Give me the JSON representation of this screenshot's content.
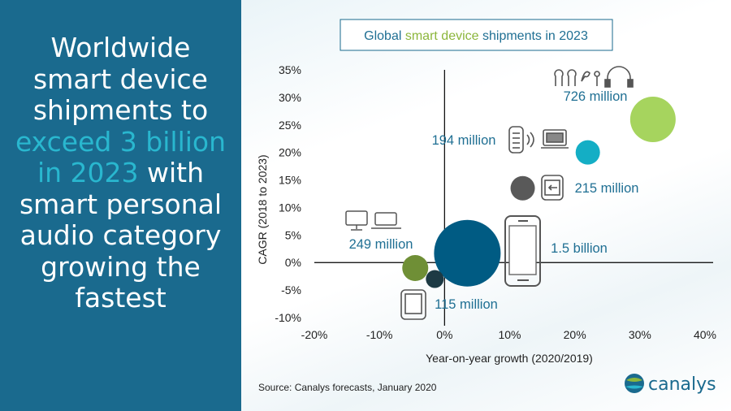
{
  "headline": {
    "line1": "Worldwide",
    "line2": "smart device",
    "line3": "shipments to",
    "line4": "exceed 3 billion",
    "line5a": "in 2023",
    "line5b": " with",
    "line6": "smart personal",
    "line7": "audio category",
    "line8": "growing the",
    "line9": "fastest"
  },
  "colors": {
    "panel": "#1a6a8e",
    "highlight": "#29b7cf",
    "label": "#1f6f93",
    "title_green": "#8cb63c"
  },
  "source": "Source:  Canalys forecasts, January 2020",
  "logo_text": "canalys",
  "chart_data": {
    "type": "scatter",
    "title": {
      "pre": "Global ",
      "highlight": "smart device",
      "post": " shipments in 2023"
    },
    "xlabel": "Year-on-year growth (2020/2019)",
    "ylabel": "CAGR (2018 to 2023)",
    "xlim": [
      -20,
      40
    ],
    "ylim": [
      -10,
      35
    ],
    "x_ticks": [
      "-20%",
      "-10%",
      "0%",
      "10%",
      "20%",
      "30%",
      "40%"
    ],
    "y_ticks": [
      "35%",
      "30%",
      "25%",
      "20%",
      "15%",
      "10%",
      "5%",
      "0%",
      "-5%",
      "-10%"
    ],
    "bubbles": [
      {
        "name": "smart personal audio",
        "x": 32,
        "y": 26,
        "r": 28,
        "color": "#a6d45e",
        "label": "726 million",
        "icon": "earbuds-headphones-icon"
      },
      {
        "name": "smart home",
        "x": 22,
        "y": 20,
        "r": 15,
        "color": "#14aec5",
        "label": "194 million",
        "icon": "speaker-tv-icon"
      },
      {
        "name": "wearable band",
        "x": 12,
        "y": 13.5,
        "r": 15,
        "color": "#595959",
        "label": "215 million",
        "icon": "smartwatch-icon"
      },
      {
        "name": "smartphone",
        "x": 3.5,
        "y": 1.7,
        "r": 41,
        "color": "#005b83",
        "label": "1.5 billion",
        "icon": "smartphone-icon"
      },
      {
        "name": "PC",
        "x": -4.5,
        "y": -1,
        "r": 16,
        "color": "#6f8f36",
        "label": "249 million",
        "icon": "desktop-laptop-icon"
      },
      {
        "name": "tablet",
        "x": -1.5,
        "y": -3,
        "r": 11,
        "color": "#1d3a44",
        "label": "115 million",
        "icon": "tablet-icon"
      }
    ]
  }
}
